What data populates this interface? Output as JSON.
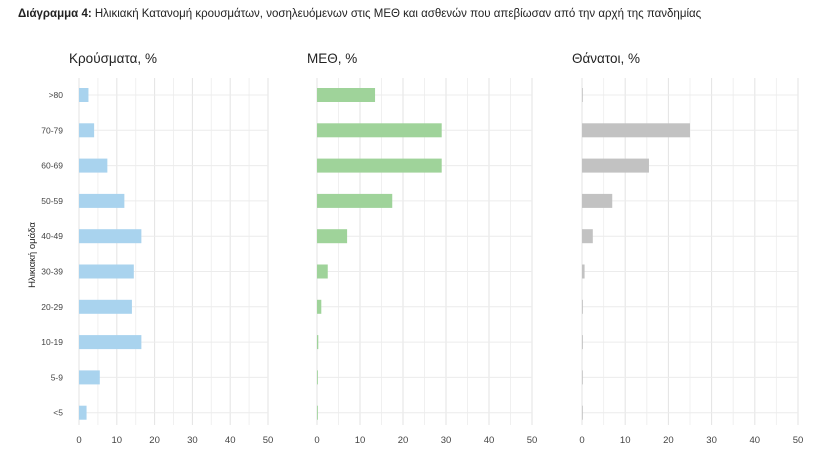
{
  "figure": {
    "title_label": "Διάγραμμα 4:",
    "title_text": "Ηλικιακή Κατανομή κρουσμάτων, νοσηλευόμενων στις ΜΕΘ και ασθενών που απεβίωσαν από την αρχή της πανδημίας",
    "ylabel": "Ηλικιακή ομάδα"
  },
  "chart_data": {
    "type": "bar",
    "orientation": "horizontal",
    "categories": [
      ">80",
      "70-79",
      "60-69",
      "50-59",
      "40-49",
      "30-39",
      "20-29",
      "10-19",
      "5-9",
      "<5"
    ],
    "xlim": [
      0,
      50
    ],
    "xticks": [
      0,
      10,
      20,
      30,
      40,
      50
    ],
    "ylabel": "Ηλικιακή ομάδα",
    "grid": true,
    "panels": [
      {
        "title": "Κρούσματα, %",
        "color": "#a9d3ee",
        "values": [
          2.5,
          4.0,
          7.5,
          12.0,
          16.5,
          14.5,
          14.0,
          16.5,
          5.5,
          2.0
        ]
      },
      {
        "title": "ΜΕΘ, %",
        "color": "#9fd39a",
        "values": [
          13.5,
          29.0,
          29.0,
          17.5,
          7.0,
          2.5,
          1.0,
          0.3,
          0.2,
          0.2
        ]
      },
      {
        "title": "Θάνατοι, %",
        "color": "#c2c2c2",
        "values": [
          0.0,
          25.0,
          15.5,
          7.0,
          2.5,
          0.6,
          0.2,
          0.2,
          0.1,
          0.1
        ]
      }
    ]
  }
}
